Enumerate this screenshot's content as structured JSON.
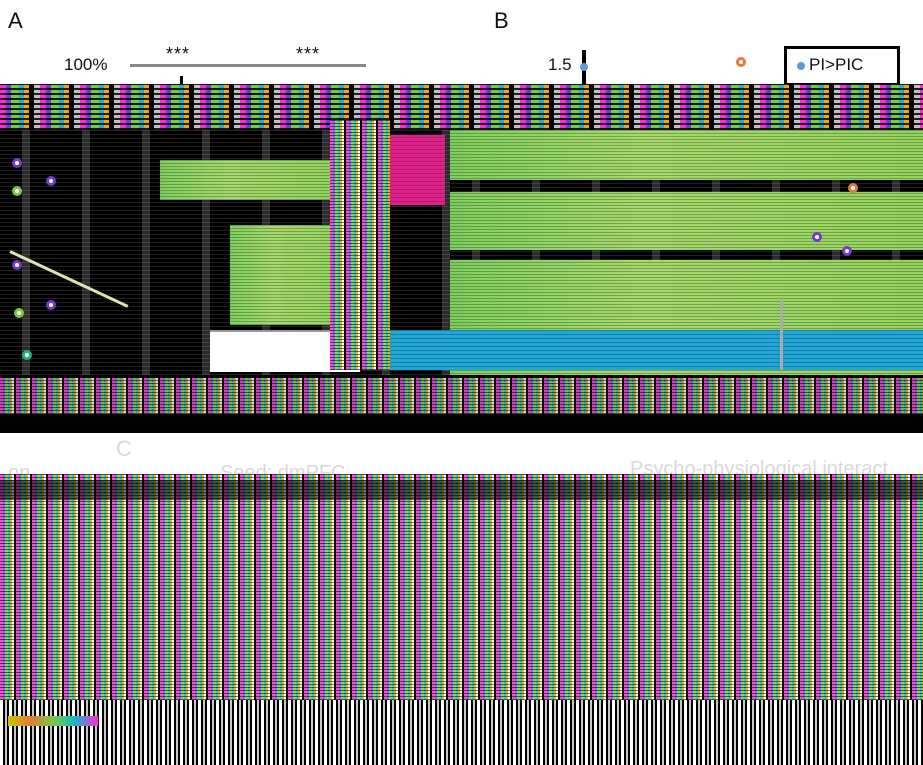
{
  "panels": {
    "a_label": "A",
    "b_label": "B",
    "c_label": "C"
  },
  "panel_a": {
    "y_tick_top": "100%",
    "significance": [
      "***",
      "***"
    ]
  },
  "panel_b": {
    "y_tick_top": "1.5",
    "legend_entry": "PI>PIC"
  },
  "panel_c": {
    "left_title_fragment": "on",
    "seed_title": "Seed: dmPFC",
    "right_title_fragment": "Psycho-physiological interact"
  },
  "colors": {
    "marker_orange": "#e07b39",
    "marker_blue": "#5b9bd5",
    "marker_purple": "#6f3bd1",
    "marker_green": "#7ac943",
    "gray_bar": "#888888"
  }
}
